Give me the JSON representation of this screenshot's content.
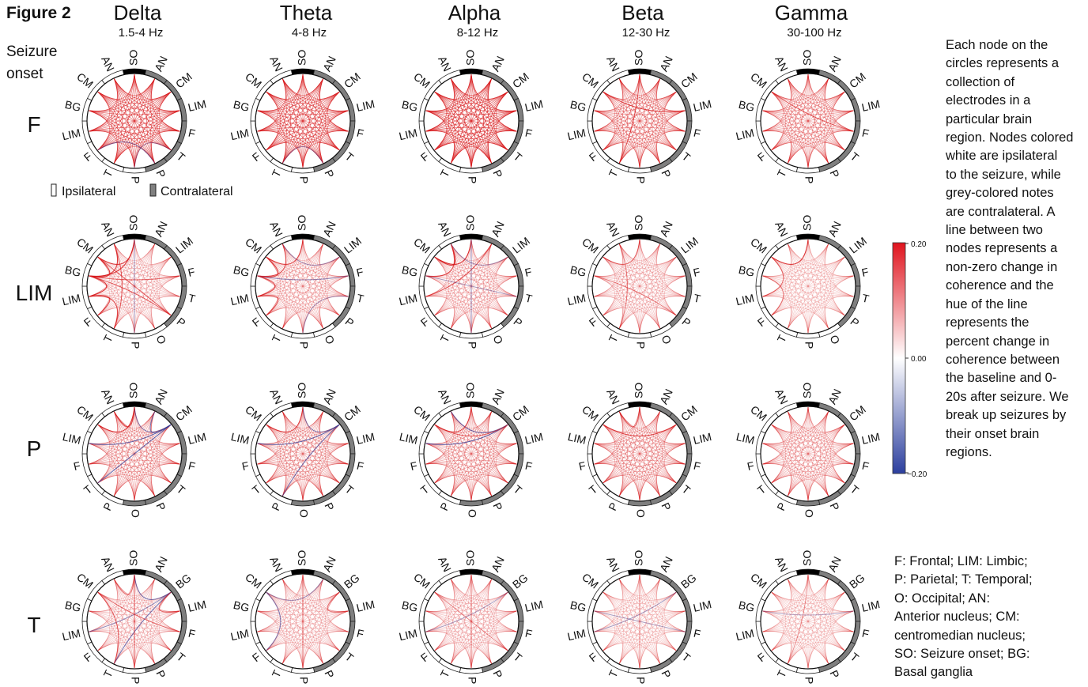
{
  "figure_label": "Figure 2",
  "seizure_onset_label": [
    "Seizure",
    "onset"
  ],
  "legend": {
    "ipsilateral": "Ipsilateral",
    "contralateral": "Contralateral"
  },
  "colors": {
    "positive": "#d7191c",
    "negative": "#2c3f9e",
    "so": "#000000",
    "contra": "#7f7f7f",
    "ipsi": "#ffffff"
  },
  "description_lines": [
    "Each node on the",
    "circles represents a",
    "collection of",
    "electrodes in a",
    "particular brain",
    "region. Nodes colored",
    "white are ipsilateral",
    "to the seizure, while",
    "grey-colored notes",
    "are contralateral. A",
    "line between two",
    "nodes represents a",
    "non-zero change in",
    "coherence and the",
    "hue of the line",
    "represents the",
    "percent change in",
    "coherence between",
    "the baseline and 0-",
    "20s after seizure. We",
    "break up seizures by",
    "their onset brain",
    "regions."
  ],
  "abbreviation_lines": [
    "F: Frontal; LIM: Limbic;",
    "P: Parietal; T: Temporal;",
    "O: Occipital; AN:",
    "Anterior nucleus; CM:",
    "centromedian nucleus;",
    "SO: Seizure onset; BG:",
    "Basal ganglia"
  ],
  "chart_data": {
    "type": "circular-connectivity",
    "colorbar": {
      "min": -0.2,
      "max": 0.2,
      "ticks": [
        "0.20",
        "0.00",
        "−0.20"
      ],
      "colormap": "bwr"
    },
    "columns": [
      {
        "band": "Delta",
        "range": "1.5-4 Hz"
      },
      {
        "band": "Theta",
        "range": "4-8 Hz"
      },
      {
        "band": "Alpha",
        "range": "8-12 Hz"
      },
      {
        "band": "Beta",
        "range": "12-30 Hz"
      },
      {
        "band": "Gamma",
        "range": "30-100 Hz"
      }
    ],
    "rows": [
      {
        "onset": "F",
        "nodes": [
          "SO",
          "AN",
          "CM",
          "LIM",
          "F",
          "T",
          "P",
          "P",
          "T",
          "F",
          "LIM",
          "BG",
          "CM",
          "AN"
        ],
        "side": [
          "so",
          "contra",
          "contra",
          "contra",
          "contra",
          "contra",
          "contra",
          "ipsi",
          "ipsi",
          "ipsi",
          "ipsi",
          "ipsi",
          "ipsi",
          "ipsi"
        ],
        "panels": [
          {
            "all_pairs": 0.12,
            "edges": [
              [
                6,
                9,
                -0.08
              ],
              [
                7,
                5,
                -0.05
              ]
            ]
          },
          {
            "all_pairs": 0.12,
            "edges": [
              [
                6,
                8,
                -0.06
              ]
            ]
          },
          {
            "all_pairs": 0.14,
            "edges": []
          },
          {
            "all_pairs": 0.08,
            "edges": [
              [
                12,
                3,
                0.14
              ],
              [
                0,
                8,
                0.12
              ]
            ]
          },
          {
            "all_pairs": 0.07,
            "edges": [
              [
                12,
                4,
                0.1
              ]
            ]
          }
        ]
      },
      {
        "onset": "LIM",
        "nodes": [
          "SO",
          "AN",
          "LIM",
          "F",
          "T",
          "P",
          "O",
          "P",
          "T",
          "F",
          "LIM",
          "BG",
          "CM",
          "AN"
        ],
        "side": [
          "so",
          "contra",
          "contra",
          "contra",
          "contra",
          "contra",
          "ipsi",
          "ipsi",
          "ipsi",
          "ipsi",
          "ipsi",
          "ipsi",
          "ipsi",
          "ipsi"
        ],
        "panels": [
          {
            "all_pairs": 0.03,
            "edges": [
              [
                11,
                12,
                0.18
              ],
              [
                11,
                13,
                0.16
              ],
              [
                11,
                10,
                0.18
              ],
              [
                10,
                9,
                0.16
              ],
              [
                12,
                0,
                0.16
              ],
              [
                11,
                0,
                0.15
              ],
              [
                11,
                5,
                0.12
              ],
              [
                10,
                8,
                0.14
              ],
              [
                13,
                8,
                0.12
              ],
              [
                11,
                3,
                0.1
              ],
              [
                7,
                0,
                -0.06
              ],
              [
                12,
                5,
                0.12
              ]
            ]
          },
          {
            "all_pairs": 0.04,
            "edges": [
              [
                11,
                12,
                0.16
              ],
              [
                11,
                10,
                0.16
              ],
              [
                11,
                3,
                -0.08
              ],
              [
                13,
                2,
                -0.06
              ],
              [
                7,
                4,
                -0.06
              ],
              [
                12,
                0,
                0.14
              ],
              [
                10,
                9,
                0.14
              ],
              [
                11,
                13,
                0.12
              ]
            ]
          },
          {
            "all_pairs": 0.04,
            "edges": [
              [
                12,
                0,
                0.18
              ],
              [
                12,
                13,
                0.18
              ],
              [
                11,
                13,
                0.14
              ],
              [
                10,
                1,
                0.12
              ],
              [
                7,
                0,
                -0.07
              ],
              [
                11,
                4,
                -0.05
              ],
              [
                2,
                13,
                -0.05
              ]
            ]
          },
          {
            "all_pairs": 0.03,
            "edges": [
              [
                12,
                0,
                0.1
              ],
              [
                11,
                5,
                0.08
              ],
              [
                13,
                8,
                0.08
              ]
            ]
          },
          {
            "all_pairs": 0.02,
            "edges": [
              [
                12,
                0,
                0.16
              ],
              [
                12,
                10,
                0.1
              ],
              [
                11,
                9,
                0.08
              ]
            ]
          }
        ]
      },
      {
        "onset": "P",
        "nodes": [
          "SO",
          "AN",
          "CM",
          "LIM",
          "F",
          "T",
          "P",
          "O",
          "P",
          "T",
          "F",
          "LIM",
          "CM",
          "AN"
        ],
        "side": [
          "so",
          "contra",
          "contra",
          "contra",
          "contra",
          "contra",
          "contra",
          "contra",
          "ipsi",
          "ipsi",
          "ipsi",
          "ipsi",
          "ipsi",
          "ipsi"
        ],
        "panels": [
          {
            "all_pairs": 0.06,
            "edges": [
              [
                2,
                11,
                -0.14
              ],
              [
                2,
                1,
                -0.12
              ],
              [
                2,
                9,
                -0.14
              ],
              [
                2,
                0,
                -0.1
              ],
              [
                12,
                0,
                0.16
              ],
              [
                0,
                13,
                0.16
              ]
            ]
          },
          {
            "all_pairs": 0.06,
            "edges": [
              [
                2,
                11,
                -0.14
              ],
              [
                2,
                8,
                -0.12
              ],
              [
                2,
                0,
                -0.1
              ],
              [
                0,
                12,
                0.14
              ]
            ]
          },
          {
            "all_pairs": 0.06,
            "edges": [
              [
                2,
                11,
                -0.15
              ],
              [
                2,
                13,
                -0.12
              ],
              [
                12,
                0,
                0.14
              ],
              [
                12,
                2,
                0.1
              ]
            ]
          },
          {
            "all_pairs": 0.06,
            "edges": [
              [
                12,
                2,
                0.14
              ],
              [
                0,
                13,
                0.1
              ]
            ]
          },
          {
            "all_pairs": 0.05,
            "edges": []
          }
        ]
      },
      {
        "onset": "T",
        "nodes": [
          "SO",
          "AN",
          "BG",
          "LIM",
          "F",
          "T",
          "P",
          "P",
          "T",
          "F",
          "LIM",
          "BG",
          "CM",
          "AN"
        ],
        "side": [
          "so",
          "contra",
          "contra",
          "contra",
          "contra",
          "contra",
          "contra",
          "ipsi",
          "ipsi",
          "ipsi",
          "ipsi",
          "ipsi",
          "ipsi",
          "ipsi"
        ],
        "panels": [
          {
            "all_pairs": 0.03,
            "edges": [
              [
                2,
                0,
                -0.12
              ],
              [
                2,
                8,
                -0.12
              ],
              [
                2,
                10,
                -0.08
              ],
              [
                12,
                8,
                0.12
              ],
              [
                0,
                7,
                0.12
              ],
              [
                12,
                4,
                0.1
              ],
              [
                2,
                3,
                0.12
              ],
              [
                0,
                13,
                0.1
              ]
            ]
          },
          {
            "all_pairs": 0.03,
            "edges": [
              [
                12,
                9,
                -0.1
              ],
              [
                0,
                7,
                0.1
              ],
              [
                2,
                3,
                0.1
              ],
              [
                12,
                1,
                -0.06
              ]
            ]
          },
          {
            "all_pairs": 0.03,
            "edges": [
              [
                10,
                2,
                -0.05
              ],
              [
                0,
                7,
                0.08
              ],
              [
                12,
                5,
                0.06
              ]
            ]
          },
          {
            "all_pairs": 0.02,
            "edges": [
              [
                10,
                2,
                -0.06
              ],
              [
                11,
                4,
                -0.05
              ],
              [
                0,
                7,
                0.06
              ]
            ]
          },
          {
            "all_pairs": 0.02,
            "edges": [
              [
                11,
                3,
                -0.04
              ],
              [
                0,
                8,
                0.05
              ]
            ]
          }
        ]
      }
    ]
  }
}
